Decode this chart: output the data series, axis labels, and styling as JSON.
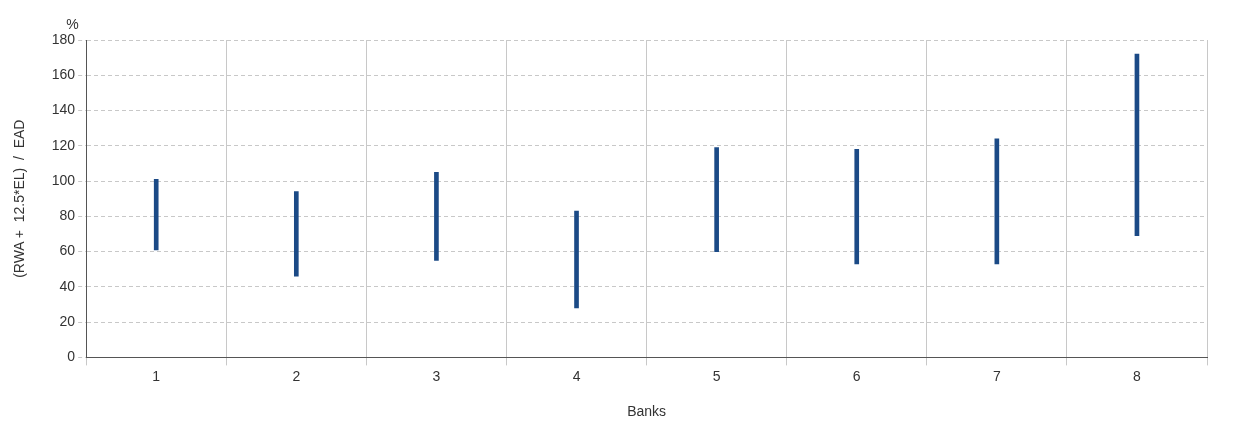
{
  "chart_data": {
    "type": "bar",
    "xlabel": "Banks",
    "ylabel": "(RWA +  12.5*EL)  /  EAD",
    "annotations": [
      "%"
    ],
    "categories": [
      "1",
      "2",
      "3",
      "4",
      "5",
      "6",
      "7",
      "8"
    ],
    "base": [
      61,
      46,
      55,
      28,
      60,
      53,
      53,
      69
    ],
    "values": [
      40,
      48,
      50,
      55,
      59,
      65,
      71,
      103
    ],
    "color": "#1b4a86",
    "ylim": [
      0,
      180
    ],
    "yticks": [
      0,
      20,
      40,
      60,
      80,
      100,
      120,
      140,
      160,
      180
    ],
    "grid": true,
    "legend": false
  }
}
